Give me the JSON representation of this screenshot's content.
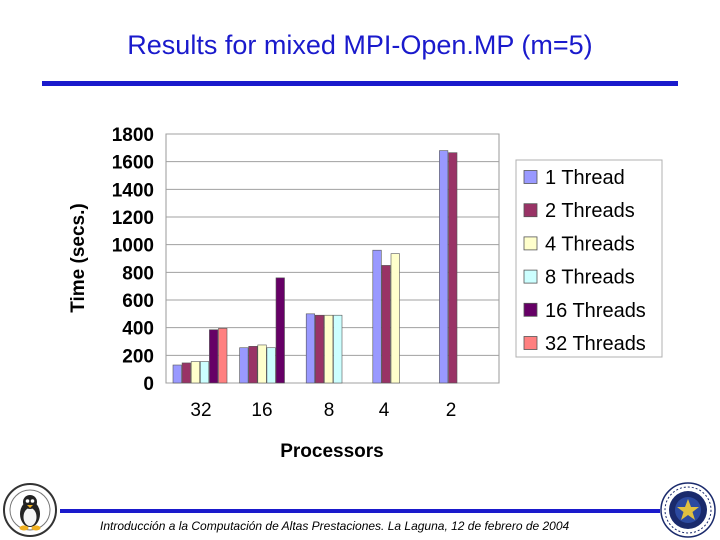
{
  "slide": {
    "title": "Results for mixed MPI-Open.MP (m=5)",
    "footer": "Introducción a la Computación de Altas Prestaciones. La Laguna, 12 de febrero de 2004"
  },
  "logos": {
    "left": "linux-penguin-logo",
    "right": "university-seal-logo"
  },
  "chart_data": {
    "type": "bar",
    "title": "",
    "xlabel": "Processors",
    "ylabel": "Time (secs.)",
    "categories": [
      "32",
      "16",
      "8",
      "4",
      "2"
    ],
    "ylim": [
      0,
      1800
    ],
    "yticks": [
      "0",
      "200",
      "400",
      "600",
      "800",
      "1000",
      "1200",
      "1400",
      "1600",
      "1800"
    ],
    "grid": true,
    "legend_position": "right",
    "series": [
      {
        "name": "1 Thread",
        "color": "#9999ff",
        "values": [
          130,
          255,
          500,
          960,
          1680
        ]
      },
      {
        "name": "2 Threads",
        "color": "#993366",
        "values": [
          145,
          265,
          490,
          850,
          1665
        ]
      },
      {
        "name": "4 Threads",
        "color": "#ffffcc",
        "values": [
          155,
          275,
          490,
          935,
          null
        ]
      },
      {
        "name": "8 Threads",
        "color": "#ccffff",
        "values": [
          155,
          255,
          490,
          null,
          null
        ]
      },
      {
        "name": "16 Threads",
        "color": "#660066",
        "values": [
          385,
          760,
          null,
          null,
          null
        ]
      },
      {
        "name": "32 Threads",
        "color": "#ff8080",
        "values": [
          395,
          null,
          null,
          null,
          null
        ]
      }
    ]
  }
}
